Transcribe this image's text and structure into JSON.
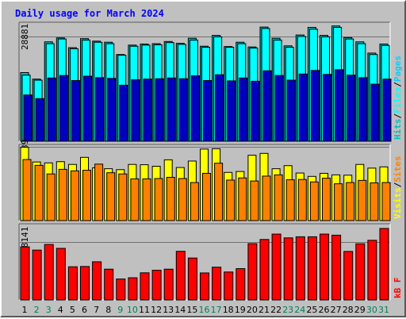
{
  "chart_data": {
    "type": "bar",
    "title": "Daily usage for March 2024",
    "categories": [
      "1",
      "2",
      "3",
      "4",
      "5",
      "6",
      "7",
      "8",
      "9",
      "10",
      "11",
      "12",
      "13",
      "14",
      "15",
      "16",
      "17",
      "18",
      "19",
      "20",
      "21",
      "22",
      "23",
      "24",
      "25",
      "26",
      "27",
      "28",
      "29",
      "30",
      "31"
    ],
    "weekend_days": [
      "2",
      "3",
      "9",
      "10",
      "16",
      "17",
      "23",
      "24",
      "30",
      "31"
    ],
    "panels": [
      {
        "id": "hits",
        "ytick": "28881",
        "ytick_value": 28881,
        "ylim": [
          0,
          32500
        ],
        "series": [
          {
            "name": "Hits",
            "color": "#00c0c0",
            "values": [
              19000,
              17200,
              27500,
              28600,
              25900,
              28400,
              27700,
              27400,
              24000,
              26600,
              26900,
              27000,
              27600,
              27100,
              28500,
              26300,
              29300,
              26200,
              27400,
              26100,
              31600,
              28500,
              26400,
              29400,
              31500,
              29300,
              31900,
              28700,
              27500,
              24400,
              26900
            ]
          },
          {
            "name": "Files",
            "color": "#00ffff",
            "values": [
              18300,
              16900,
              27000,
              28300,
              25600,
              28000,
              27400,
              27000,
              23800,
              26300,
              26600,
              26700,
              27300,
              26800,
              28000,
              26000,
              28900,
              26000,
              27000,
              25800,
              31200,
              28000,
              26000,
              29000,
              31000,
              28900,
              31500,
              28300,
              27000,
              24000,
              26500
            ]
          },
          {
            "name": "Pages",
            "color": "#0000c0",
            "values": [
              12800,
              11800,
              17500,
              18200,
              16800,
              18000,
              17600,
              17400,
              15500,
              17000,
              17200,
              17300,
              17500,
              17300,
              18100,
              16800,
              18400,
              16700,
              17500,
              16600,
              19500,
              18200,
              16900,
              18600,
              19600,
              18500,
              19800,
              18300,
              17600,
              15800,
              17200
            ]
          }
        ],
        "right_labels": [
          {
            "text": "Hits",
            "color": "#00c0c0"
          },
          {
            "text": "Files",
            "color": "#00ffff"
          },
          {
            "text": "Pages",
            "color": "#00d0ff"
          }
        ]
      },
      {
        "id": "visits",
        "ytick": "239",
        "ytick_value": 239,
        "ylim": [
          0,
          243
        ],
        "series": [
          {
            "name": "Visits",
            "color": "#ffff00",
            "values": [
              239,
              191,
              188,
              192,
              183,
              206,
              172,
              169,
              166,
              183,
              182,
              177,
              198,
              173,
              194,
              233,
              234,
              157,
              160,
              213,
              219,
              169,
              179,
              155,
              144,
              154,
              149,
              148,
              183,
              171,
              175
            ]
          },
          {
            "name": "Sites",
            "color": "#ff8000",
            "values": [
              199,
              180,
              152,
              167,
              162,
              164,
              184,
              156,
              152,
              136,
              136,
              137,
              141,
              137,
              124,
              154,
              187,
              132,
              139,
              129,
              145,
              149,
              133,
              134,
              126,
              138,
              120,
              124,
              131,
              123,
              124
            ]
          }
        ],
        "right_labels": [
          {
            "text": "Visits",
            "color": "#ffff00"
          },
          {
            "text": "Sites",
            "color": "#ff8000"
          }
        ]
      },
      {
        "id": "kbytes",
        "ytick": "428141",
        "ytick_value": 428141,
        "ylim": [
          0,
          555000
        ],
        "series": [
          {
            "name": "kB F",
            "color": "#ff0000",
            "values": [
              395000,
              371000,
              413000,
              384000,
              247000,
              249000,
              284000,
              229000,
              156000,
              165000,
              202000,
              221000,
              229000,
              362000,
              312000,
              201000,
              244000,
              208000,
              233000,
              419000,
              450000,
              490000,
              462000,
              470000,
              470000,
              490000,
              482000,
              361000,
              418000,
              444000,
              532000
            ]
          }
        ],
        "right_labels": [
          {
            "text": "kB F",
            "color": "#ff0000"
          }
        ]
      }
    ],
    "colors": {
      "background": "#c0c0c0",
      "title": "#0000ff",
      "weekday_label": "#000000",
      "weekend_label": "#00805c"
    }
  }
}
